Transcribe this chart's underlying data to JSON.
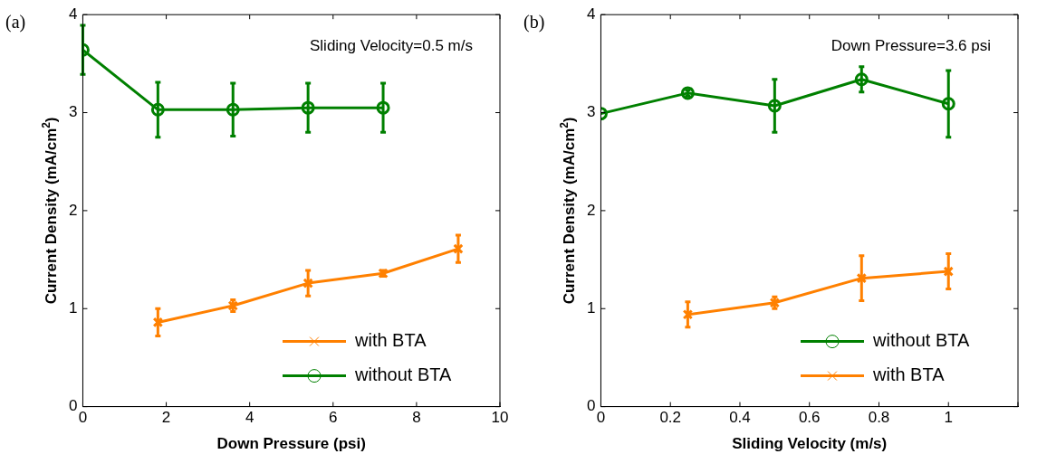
{
  "chart_data": [
    {
      "type": "line",
      "title": "(a)",
      "xlabel": "Down Pressure (psi)",
      "ylabel": "Current Density (mA/cm$^{2}$)",
      "annotations": [
        "Sliding Velocity=0.5 m/s"
      ],
      "xlim": [
        0,
        10
      ],
      "xticks": [
        0,
        2,
        4,
        6,
        8,
        10
      ],
      "ylim": [
        0,
        4
      ],
      "yticks": [
        0,
        1,
        2,
        3,
        4
      ],
      "grid": false,
      "legend": "bottom right",
      "series": [
        {
          "name": "with BTA",
          "color": "#ff8000",
          "marker": "cross",
          "x": [
            1.8,
            3.6,
            5.4,
            7.2,
            9
          ],
          "values": [
            0.86,
            1.03,
            1.26,
            1.36,
            1.61
          ],
          "errors": [
            0.14,
            0.06,
            0.13,
            0.03,
            0.14
          ]
        },
        {
          "name": "without BTA",
          "color": "#008000",
          "marker": "circle",
          "x": [
            0,
            1.8,
            3.6,
            5.4,
            7.2
          ],
          "values": [
            3.64,
            3.03,
            3.03,
            3.05,
            3.05
          ],
          "errors": [
            0.25,
            0.28,
            0.27,
            0.25,
            0.25
          ]
        }
      ]
    },
    {
      "type": "line",
      "title": "(b)",
      "xlabel": "Sliding Velocity (m/s)",
      "ylabel": "Current Density (mA/cm$^{2}$)",
      "annotations": [
        "Down Pressure=3.6 psi"
      ],
      "xlim": [
        0,
        1.2
      ],
      "xticks": [
        0,
        0.2,
        0.4,
        0.6,
        0.8,
        1,
        {
          "value": 1.2,
          "label": null
        }
      ],
      "ylim": [
        0,
        4
      ],
      "yticks": [
        0,
        1,
        2,
        3,
        4
      ],
      "grid": false,
      "legend": "bottom right",
      "series": [
        {
          "name": "without BTA",
          "color": "#008000",
          "marker": "circle",
          "x": [
            0,
            0.25,
            0.5,
            0.75,
            1
          ],
          "values": [
            2.99,
            3.2,
            3.07,
            3.34,
            3.09
          ],
          "errors": [
            null,
            0.03,
            0.27,
            0.13,
            0.34
          ]
        },
        {
          "name": "with BTA",
          "color": "#ff8000",
          "marker": "cross",
          "x": [
            0.25,
            0.5,
            0.75,
            1
          ],
          "values": [
            0.94,
            1.06,
            1.31,
            1.38
          ],
          "errors": [
            0.13,
            0.06,
            0.23,
            0.18
          ]
        }
      ]
    }
  ]
}
